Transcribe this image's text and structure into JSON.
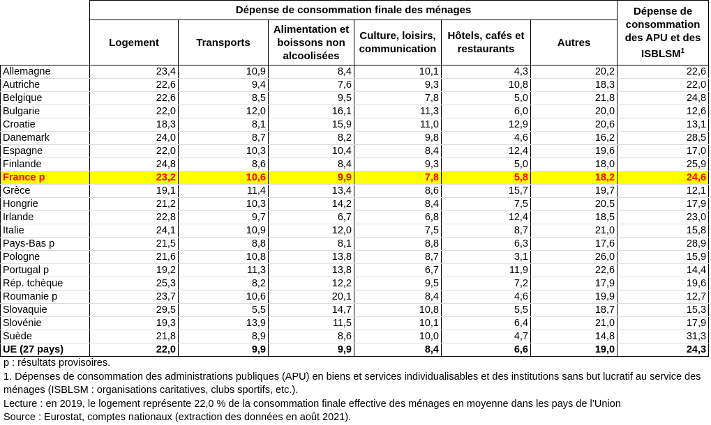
{
  "table": {
    "group_header": "Dépense de consommation finale des ménages",
    "columns": [
      "Logement",
      "Transports",
      "Alimentation et boissons non alcoolisées",
      "Culture, loisirs, communication",
      "Hôtels, cafés et restaurants",
      "Autres"
    ],
    "last_column": {
      "text": "Dépense de consommation des APU et des ISBLSM",
      "footnote_mark": "1"
    },
    "rows": [
      {
        "label": "Allemagne",
        "cells": [
          "23,4",
          "10,9",
          "8,4",
          "10,1",
          "4,3",
          "20,2",
          "22,6"
        ]
      },
      {
        "label": "Autriche",
        "cells": [
          "22,6",
          "9,4",
          "7,6",
          "9,3",
          "10,8",
          "18,3",
          "22,0"
        ]
      },
      {
        "label": "Belgique",
        "cells": [
          "22,6",
          "8,5",
          "9,5",
          "7,8",
          "5,0",
          "21,8",
          "24,8"
        ]
      },
      {
        "label": "Bulgarie",
        "cells": [
          "22,0",
          "12,0",
          "16,1",
          "11,3",
          "6,0",
          "20,0",
          "12,6"
        ]
      },
      {
        "label": "Croatie",
        "cells": [
          "18,3",
          "8,1",
          "15,9",
          "11,0",
          "12,9",
          "20,6",
          "13,1"
        ]
      },
      {
        "label": "Danemark",
        "cells": [
          "24,0",
          "8,7",
          "8,2",
          "9,8",
          "4,6",
          "16,2",
          "28,5"
        ]
      },
      {
        "label": "Espagne",
        "cells": [
          "22,0",
          "10,3",
          "10,4",
          "8,4",
          "12,4",
          "19,6",
          "17,0"
        ]
      },
      {
        "label": "Finlande",
        "cells": [
          "24,8",
          "8,6",
          "8,4",
          "9,3",
          "5,0",
          "18,0",
          "25,9"
        ]
      },
      {
        "label": "France p",
        "cells": [
          "23,2",
          "10,6",
          "9,9",
          "7,8",
          "5,8",
          "18,2",
          "24,6"
        ]
      },
      {
        "label": "Grèce",
        "cells": [
          "19,1",
          "11,4",
          "13,4",
          "8,6",
          "15,7",
          "19,7",
          "12,1"
        ]
      },
      {
        "label": "Hongrie",
        "cells": [
          "21,2",
          "10,3",
          "14,2",
          "8,4",
          "7,5",
          "20,5",
          "17,9"
        ]
      },
      {
        "label": "Irlande",
        "cells": [
          "22,8",
          "9,7",
          "6,7",
          "6,8",
          "12,4",
          "18,5",
          "23,0"
        ]
      },
      {
        "label": "Italie",
        "cells": [
          "24,1",
          "10,9",
          "12,0",
          "7,5",
          "8,7",
          "21,0",
          "15,8"
        ]
      },
      {
        "label": "Pays-Bas p",
        "cells": [
          "21,5",
          "8,8",
          "8,1",
          "8,8",
          "6,3",
          "17,6",
          "28,9"
        ]
      },
      {
        "label": "Pologne",
        "cells": [
          "21,6",
          "10,8",
          "13,8",
          "8,7",
          "3,1",
          "26,0",
          "15,9"
        ]
      },
      {
        "label": "Portugal p",
        "cells": [
          "19,2",
          "11,3",
          "13,8",
          "6,7",
          "11,9",
          "22,6",
          "14,4"
        ]
      },
      {
        "label": "Rép. tchèque",
        "cells": [
          "25,3",
          "8,2",
          "12,2",
          "9,5",
          "7,2",
          "17,9",
          "19,6"
        ]
      },
      {
        "label": "Roumanie p",
        "cells": [
          "23,7",
          "10,6",
          "20,1",
          "8,4",
          "4,6",
          "19,9",
          "12,7"
        ]
      },
      {
        "label": "Slovaquie",
        "cells": [
          "29,5",
          "5,5",
          "14,7",
          "10,8",
          "5,5",
          "18,7",
          "15,3"
        ]
      },
      {
        "label": "Slovénie",
        "cells": [
          "19,3",
          "13,9",
          "11,5",
          "10,1",
          "6,4",
          "21,0",
          "17,9"
        ]
      },
      {
        "label": "Suède",
        "cells": [
          "21,8",
          "8,9",
          "8,6",
          "10,0",
          "4,7",
          "14,8",
          "31,3"
        ]
      },
      {
        "label": "UE (27 pays)",
        "cells": [
          "22,0",
          "9,9",
          "9,9",
          "8,4",
          "6,6",
          "19,0",
          "24,3"
        ]
      }
    ]
  },
  "notes": [
    "p : résultats provisoires.",
    "1. Dépenses de consommation des administrations publiques (APU) en biens et services individualisables et des institutions sans but lucratif au service des ménages (ISBLSM : organisations caritatives, clubs sportifs, etc.).",
    "Lecture : en 2019, le logement représente 22,0 % de la consommation finale effective des ménages en moyenne dans les pays de l’Union",
    "Source : Eurostat, comptes nationaux (extraction des données en août 2021)."
  ]
}
